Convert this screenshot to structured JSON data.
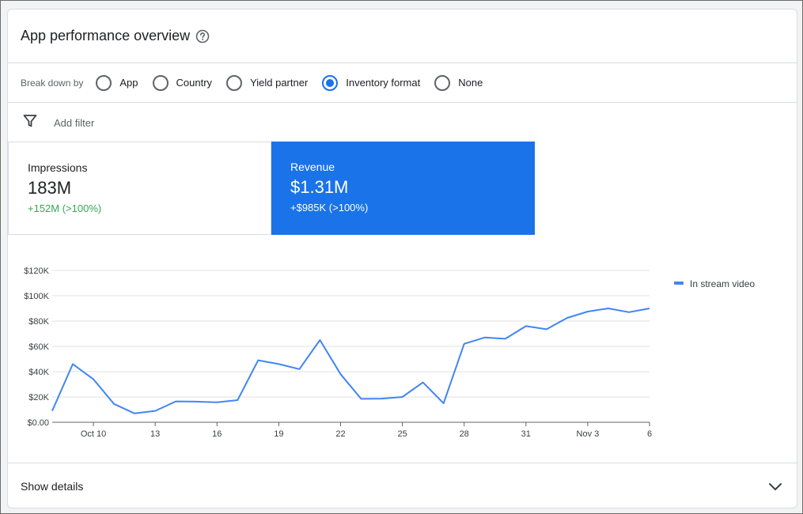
{
  "header": {
    "title": "App performance overview",
    "help_icon": "help-circle-icon"
  },
  "breakdown": {
    "label": "Break down by",
    "options": [
      {
        "label": "App",
        "checked": false
      },
      {
        "label": "Country",
        "checked": false
      },
      {
        "label": "Yield partner",
        "checked": false
      },
      {
        "label": "Inventory format",
        "checked": true
      },
      {
        "label": "None",
        "checked": false
      }
    ]
  },
  "filter": {
    "icon": "filter-icon",
    "label": "Add filter"
  },
  "metrics": {
    "impressions": {
      "label": "Impressions",
      "value": "183M",
      "change": "+152M (>100%)"
    },
    "revenue": {
      "label": "Revenue",
      "value": "$1.31M",
      "change": "+$985K (>100%)"
    }
  },
  "colors": {
    "accent": "#1a73e8",
    "positive": "#34a853",
    "series": "#4285f4"
  },
  "chart_data": {
    "type": "line",
    "y_tick_labels": [
      "$0.00",
      "$20K",
      "$40K",
      "$60K",
      "$80K",
      "$100K",
      "$120K"
    ],
    "ylim": [
      0,
      120000
    ],
    "x_tick_labels": [
      "Oct 10",
      "13",
      "16",
      "19",
      "22",
      "25",
      "28",
      "31",
      "Nov 3",
      "6"
    ],
    "x_tick_days": [
      2,
      5,
      8,
      11,
      14,
      17,
      20,
      23,
      26,
      29
    ],
    "grid": true,
    "legend_position": "top-right",
    "series": [
      {
        "name": "In stream video",
        "x": [
          0,
          1,
          2,
          3,
          4,
          5,
          6,
          7,
          8,
          9,
          10,
          11,
          12,
          13,
          14,
          15,
          16,
          17,
          18,
          19,
          20,
          21,
          22,
          23,
          24,
          25,
          26,
          27,
          28,
          29
        ],
        "values": [
          9000,
          46000,
          34000,
          14500,
          7000,
          9000,
          16500,
          16300,
          15800,
          17500,
          49000,
          46000,
          42000,
          65000,
          38000,
          18500,
          18700,
          20000,
          31500,
          15000,
          62000,
          67000,
          66000,
          76000,
          73500,
          82500,
          87500,
          90000,
          87000,
          90000
        ]
      }
    ]
  },
  "footer": {
    "label": "Show details",
    "icon": "chevron-down-icon"
  }
}
